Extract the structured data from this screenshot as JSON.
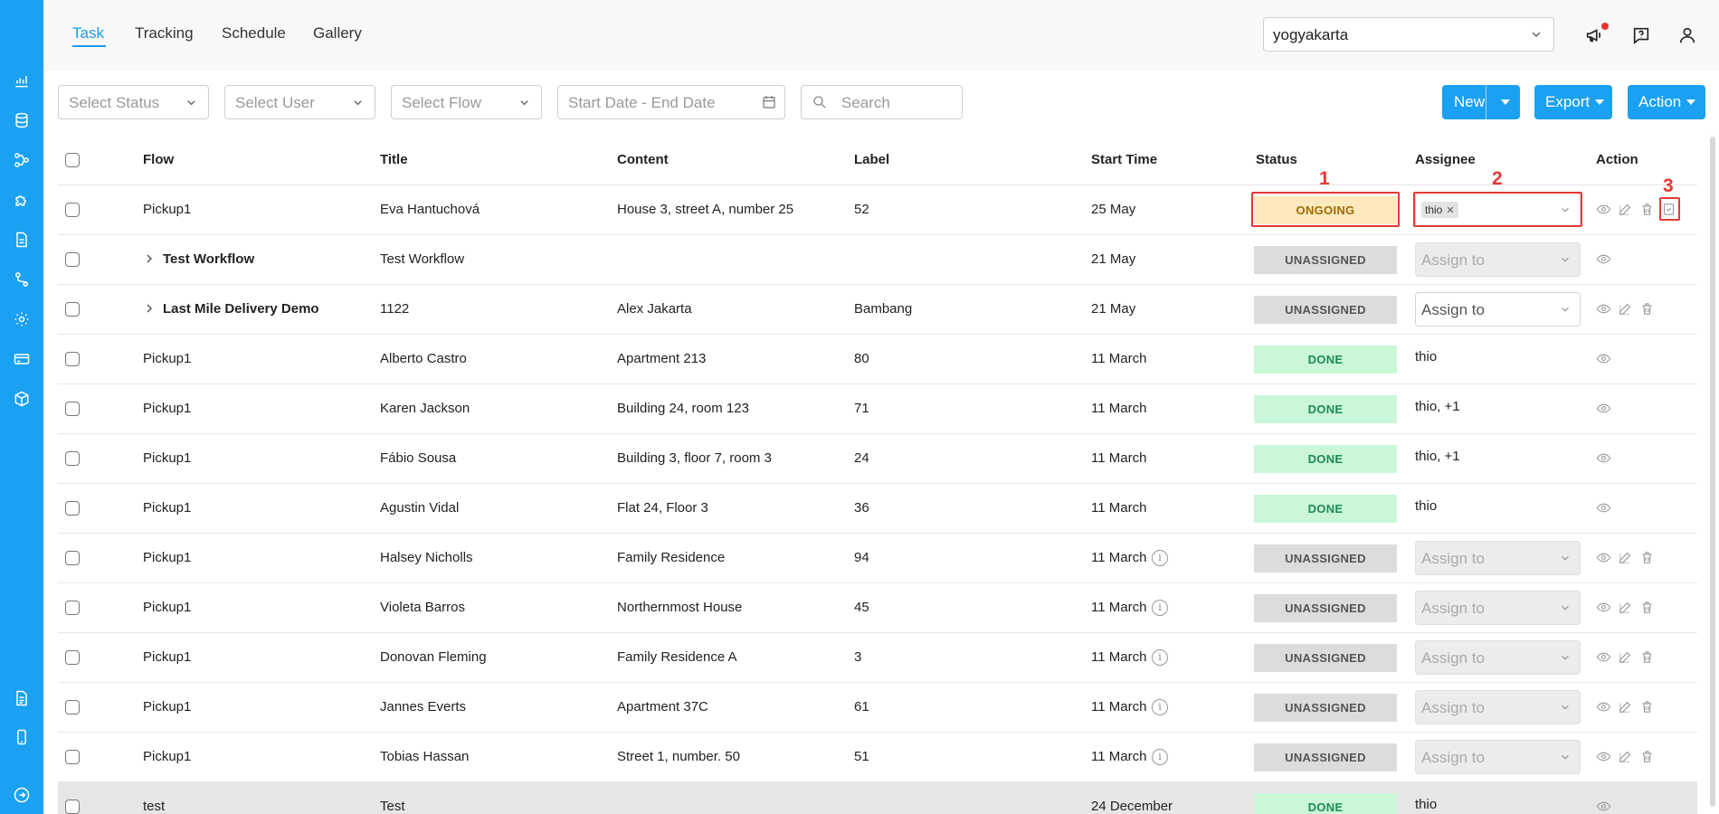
{
  "header": {
    "tabs": [
      {
        "label": "Task",
        "active": true
      },
      {
        "label": "Tracking",
        "active": false
      },
      {
        "label": "Schedule",
        "active": false
      },
      {
        "label": "Gallery",
        "active": false
      }
    ],
    "location_select": {
      "value": "yogyakarta"
    },
    "icons": [
      "megaphone-icon",
      "help-chat-icon",
      "user-icon"
    ]
  },
  "sidebar": {
    "icons": [
      "analytics-icon",
      "tasks-icon",
      "flow-icon",
      "integrations-icon",
      "document-icon",
      "route-icon",
      "settings-icon",
      "billing-icon",
      "package-icon",
      "report-icon",
      "mobile-icon",
      "logout-icon"
    ]
  },
  "filters": {
    "status_placeholder": "Select Status",
    "user_placeholder": "Select User",
    "flow_placeholder": "Select Flow",
    "date_placeholder": "Start Date - End Date",
    "search_placeholder": "Search"
  },
  "buttons": {
    "new": "New",
    "export": "Export",
    "action": "Action"
  },
  "table": {
    "columns": [
      "Flow",
      "Title",
      "Content",
      "Label",
      "Start Time",
      "Status",
      "Assignee",
      "Action"
    ],
    "assign_placeholder": "Assign to",
    "rows": [
      {
        "flow": "Pickup1",
        "title": "Eva Hantuchová",
        "content": "House 3, street A, number 25",
        "label": "52",
        "start": "25 May",
        "status": "ONGOING",
        "assignee": "thio"
      },
      {
        "flow": "Test Workflow",
        "title": "Test Workflow",
        "content": "",
        "label": "",
        "start": "21 May",
        "status": "UNASSIGNED",
        "assignee": ""
      },
      {
        "flow": "Last Mile Delivery Demo",
        "title": "1122",
        "content": "Alex Jakarta",
        "label": "Bambang",
        "start": "21 May",
        "status": "UNASSIGNED",
        "assignee": ""
      },
      {
        "flow": "Pickup1",
        "title": "Alberto Castro",
        "content": "Apartment 213",
        "label": "80",
        "start": "11 March",
        "status": "DONE",
        "assignee": "thio"
      },
      {
        "flow": "Pickup1",
        "title": "Karen Jackson",
        "content": "Building 24, room 123",
        "label": "71",
        "start": "11 March",
        "status": "DONE",
        "assignee": "thio, +1"
      },
      {
        "flow": "Pickup1",
        "title": "Fábio Sousa",
        "content": "Building 3, floor 7, room 3",
        "label": "24",
        "start": "11 March",
        "status": "DONE",
        "assignee": "thio, +1"
      },
      {
        "flow": "Pickup1",
        "title": "Agustin Vidal",
        "content": "Flat 24, Floor 3",
        "label": "36",
        "start": "11 March",
        "status": "DONE",
        "assignee": "thio"
      },
      {
        "flow": "Pickup1",
        "title": "Halsey Nicholls",
        "content": "Family Residence",
        "label": "94",
        "start": "11 March",
        "status": "UNASSIGNED",
        "assignee": ""
      },
      {
        "flow": "Pickup1",
        "title": "Violeta Barros",
        "content": "Northernmost House",
        "label": "45",
        "start": "11 March",
        "status": "UNASSIGNED",
        "assignee": ""
      },
      {
        "flow": "Pickup1",
        "title": "Donovan Fleming",
        "content": "Family Residence A",
        "label": "3",
        "start": "11 March",
        "status": "UNASSIGNED",
        "assignee": ""
      },
      {
        "flow": "Pickup1",
        "title": "Jannes Everts",
        "content": "Apartment 37C",
        "label": "61",
        "start": "11 March",
        "status": "UNASSIGNED",
        "assignee": ""
      },
      {
        "flow": "Pickup1",
        "title": "Tobias Hassan",
        "content": "Street 1, number. 50",
        "label": "51",
        "start": "11 March",
        "status": "UNASSIGNED",
        "assignee": ""
      },
      {
        "flow": "test",
        "title": "Test",
        "content": "",
        "label": "",
        "start": "24 December",
        "status": "DONE",
        "assignee": "thio"
      }
    ]
  },
  "annotations": {
    "status_callout": "1",
    "assignee_callout": "2",
    "action_callout": "3"
  },
  "colors": {
    "accent": "#1aa1f1",
    "ongoing": "#fde9bd",
    "unassigned": "#dcdcdc",
    "done": "#c9f7d8",
    "highlight": "#e53935"
  }
}
